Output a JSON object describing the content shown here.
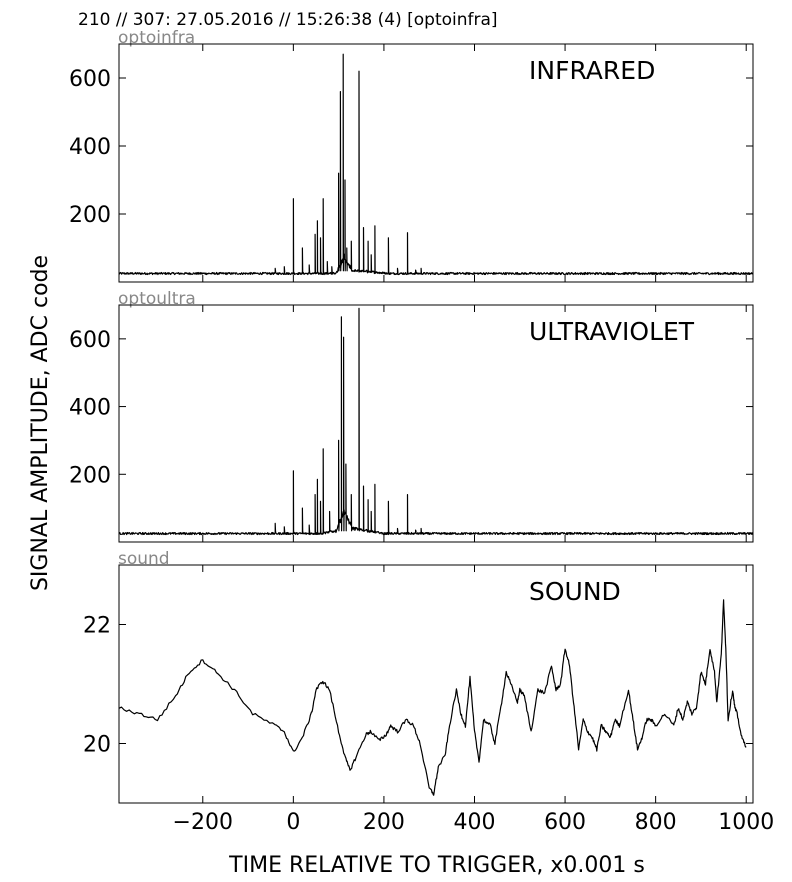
{
  "header": "210 // 307:   27.05.2016 // 15:26:38 (4)  [optoinfra]",
  "ylabel": "SIGNAL AMPLITUDE,  ADC code",
  "xlabel": "TIME RELATIVE TO TRIGGER,   x0.001 s",
  "x_ticks": [
    "−200",
    "0",
    "200",
    "400",
    "600",
    "800",
    "1000"
  ],
  "panels": [
    {
      "channel_label": "optoinfra",
      "title": "INFRARED",
      "y_ticks": [
        "200",
        "400",
        "600"
      ]
    },
    {
      "channel_label": "optoultra",
      "title": "ULTRAVIOLET",
      "y_ticks": [
        "200",
        "400",
        "600"
      ]
    },
    {
      "channel_label": "sound",
      "title": "SOUND",
      "y_ticks": [
        "20",
        "22"
      ]
    }
  ],
  "chart_data": [
    {
      "type": "line",
      "title": "INFRARED",
      "xlim": [
        -385,
        1015
      ],
      "ylim": [
        0,
        700
      ],
      "baseline": 25,
      "bursts": [
        {
          "x": [
            80,
            210
          ],
          "y": 35
        },
        {
          "x": [
            95,
            130
          ],
          "y": 80
        }
      ],
      "spikes": [
        {
          "x": -40,
          "y": 40
        },
        {
          "x": -20,
          "y": 45
        },
        {
          "x": 0,
          "y": 245
        },
        {
          "x": 20,
          "y": 100
        },
        {
          "x": 35,
          "y": 50
        },
        {
          "x": 48,
          "y": 140
        },
        {
          "x": 53,
          "y": 180
        },
        {
          "x": 60,
          "y": 130
        },
        {
          "x": 66,
          "y": 245
        },
        {
          "x": 75,
          "y": 60
        },
        {
          "x": 85,
          "y": 45
        },
        {
          "x": 100,
          "y": 320
        },
        {
          "x": 104,
          "y": 560
        },
        {
          "x": 110,
          "y": 670
        },
        {
          "x": 114,
          "y": 300
        },
        {
          "x": 118,
          "y": 100
        },
        {
          "x": 128,
          "y": 120
        },
        {
          "x": 145,
          "y": 620
        },
        {
          "x": 155,
          "y": 160
        },
        {
          "x": 165,
          "y": 120
        },
        {
          "x": 172,
          "y": 80
        },
        {
          "x": 180,
          "y": 165
        },
        {
          "x": 210,
          "y": 130
        },
        {
          "x": 230,
          "y": 40
        },
        {
          "x": 252,
          "y": 145
        },
        {
          "x": 270,
          "y": 35
        },
        {
          "x": 282,
          "y": 40
        }
      ]
    },
    {
      "type": "line",
      "title": "ULTRAVIOLET",
      "xlim": [
        -385,
        1015
      ],
      "ylim": [
        0,
        700
      ],
      "baseline": 25,
      "bursts": [
        {
          "x": [
            60,
            200
          ],
          "y": 45
        },
        {
          "x": [
            95,
            130
          ],
          "y": 95
        }
      ],
      "spikes": [
        {
          "x": -40,
          "y": 55
        },
        {
          "x": -20,
          "y": 45
        },
        {
          "x": 0,
          "y": 210
        },
        {
          "x": 20,
          "y": 100
        },
        {
          "x": 35,
          "y": 50
        },
        {
          "x": 48,
          "y": 140
        },
        {
          "x": 53,
          "y": 185
        },
        {
          "x": 60,
          "y": 120
        },
        {
          "x": 66,
          "y": 275
        },
        {
          "x": 80,
          "y": 90
        },
        {
          "x": 100,
          "y": 300
        },
        {
          "x": 106,
          "y": 665
        },
        {
          "x": 111,
          "y": 605
        },
        {
          "x": 116,
          "y": 230
        },
        {
          "x": 128,
          "y": 140
        },
        {
          "x": 145,
          "y": 690
        },
        {
          "x": 155,
          "y": 165
        },
        {
          "x": 165,
          "y": 125
        },
        {
          "x": 172,
          "y": 90
        },
        {
          "x": 180,
          "y": 170
        },
        {
          "x": 210,
          "y": 120
        },
        {
          "x": 230,
          "y": 40
        },
        {
          "x": 252,
          "y": 140
        },
        {
          "x": 270,
          "y": 35
        },
        {
          "x": 282,
          "y": 40
        }
      ]
    },
    {
      "type": "line",
      "title": "SOUND",
      "xlim": [
        -385,
        1015
      ],
      "ylim": [
        19,
        23
      ],
      "x": [
        -385,
        -340,
        -300,
        -260,
        -230,
        -200,
        -170,
        -130,
        -90,
        -40,
        -20,
        0,
        20,
        40,
        50,
        65,
        80,
        100,
        115,
        125,
        140,
        160,
        170,
        190,
        205,
        215,
        230,
        250,
        265,
        280,
        300,
        310,
        320,
        335,
        345,
        360,
        370,
        380,
        390,
        400,
        410,
        420,
        435,
        445,
        460,
        470,
        480,
        495,
        500,
        510,
        525,
        540,
        555,
        570,
        580,
        590,
        600,
        610,
        620,
        630,
        640,
        650,
        660,
        670,
        680,
        690,
        700,
        710,
        720,
        740,
        750,
        760,
        770,
        780,
        790,
        800,
        820,
        840,
        850,
        860,
        870,
        880,
        890,
        900,
        910,
        920,
        930,
        935,
        945,
        950,
        955,
        960,
        970,
        975,
        980,
        990,
        1000
      ],
      "values": [
        20.6,
        20.5,
        20.4,
        20.8,
        21.2,
        21.4,
        21.2,
        20.9,
        20.5,
        20.3,
        20.2,
        19.85,
        20.1,
        20.5,
        20.9,
        21.05,
        20.9,
        20.2,
        19.75,
        19.55,
        19.8,
        20.15,
        20.2,
        20.05,
        20.15,
        20.3,
        20.2,
        20.4,
        20.3,
        20.0,
        19.25,
        19.15,
        19.6,
        19.8,
        20.3,
        20.9,
        20.5,
        20.3,
        21.1,
        20.2,
        19.7,
        20.4,
        20.3,
        20.0,
        20.7,
        21.2,
        21.0,
        20.7,
        20.9,
        20.8,
        20.2,
        20.9,
        20.85,
        21.3,
        20.9,
        21.0,
        21.6,
        21.3,
        20.6,
        19.9,
        20.4,
        20.2,
        20.1,
        19.9,
        20.3,
        20.2,
        20.1,
        20.4,
        20.3,
        20.9,
        20.4,
        19.9,
        20.1,
        20.4,
        20.4,
        20.3,
        20.5,
        20.3,
        20.6,
        20.4,
        20.7,
        20.5,
        20.6,
        21.2,
        21.0,
        21.6,
        21.2,
        20.7,
        21.5,
        22.4,
        21.6,
        20.4,
        20.9,
        20.6,
        20.5,
        20.1,
        19.95
      ]
    }
  ]
}
